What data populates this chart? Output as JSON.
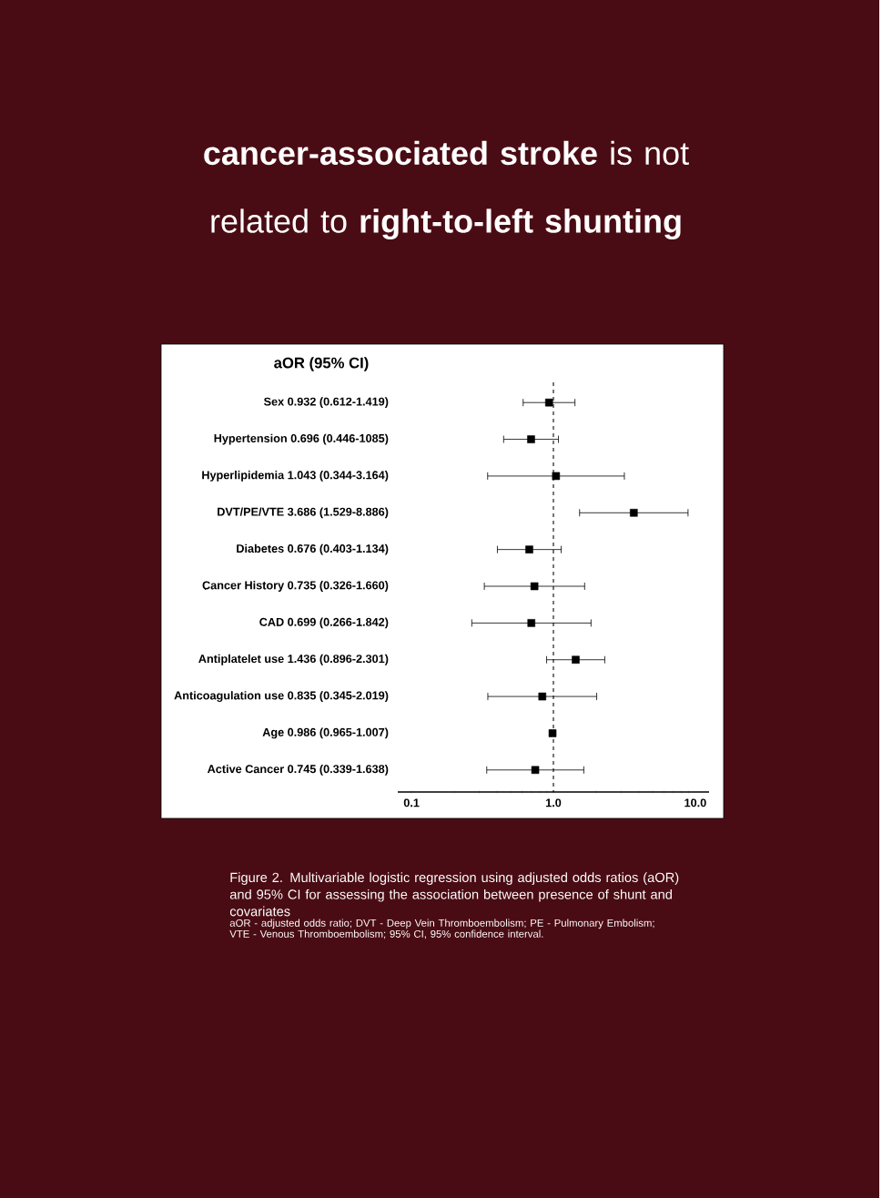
{
  "chart_data": {
    "type": "scatter",
    "orientation": "horizontal",
    "title": "**cancer-associated stroke** is not related to **right-to-left shunting**",
    "ylabel": "aOR (95% CI)",
    "annotations": [
      "Figure 2. Multivariable logistic regression using adjusted odds ratios (aOR) and 95% CI for assessing the association between presence of shunt and covariates",
      "aOR - adjusted odds ratio; DVT - Deep Vein Thromboembolism; PE - Pulmonary Embolism; VTE - Venous Thromboembolism; 95% CI, 95% confidence interval."
    ],
    "categories": [
      "Sex 0.932 (0.612-1.419)",
      "Hypertension 0.696 (0.446-1085)",
      "Hyperlipidemia 1.043 (0.344-3.164)",
      "DVT/PE/VTE 3.686 (1.529-8.886)",
      "Diabetes 0.676 (0.403-1.134)",
      "Cancer History 0.735 (0.326-1.660)",
      "CAD 0.699 (0.266-1.842)",
      "Antiplatelet use 1.436 (0.896-2.301)",
      "Anticoagulation use 0.835 (0.345-2.019)",
      "Age 0.986 (0.965-1.007)",
      "Active Cancer 0.745 (0.339-1.638)"
    ],
    "values": [
      0.932,
      0.696,
      1.043,
      3.686,
      0.676,
      0.735,
      0.699,
      1.436,
      0.835,
      0.986,
      0.745
    ],
    "errors": [
      [
        0.612,
        1.419
      ],
      [
        0.446,
        1.085
      ],
      [
        0.344,
        3.164
      ],
      [
        1.529,
        8.886
      ],
      [
        0.403,
        1.134
      ],
      [
        0.326,
        1.66
      ],
      [
        0.266,
        1.842
      ],
      [
        0.896,
        2.301
      ],
      [
        0.345,
        2.019
      ],
      [
        0.965,
        1.007
      ],
      [
        0.339,
        1.638
      ]
    ],
    "color": "#000000",
    "marker": "square",
    "log": "x",
    "grid": false,
    "xlim": [
      0.08,
      12.5
    ],
    "xticks": [
      {
        "value": 0.1,
        "label": "0.1"
      },
      {
        "value": 1,
        "label": "1.0"
      },
      {
        "value": 10,
        "label": "10.0"
      }
    ],
    "ref_lines": [
      {
        "axis": "x",
        "value": 1,
        "line_style": "dashed"
      }
    ]
  }
}
